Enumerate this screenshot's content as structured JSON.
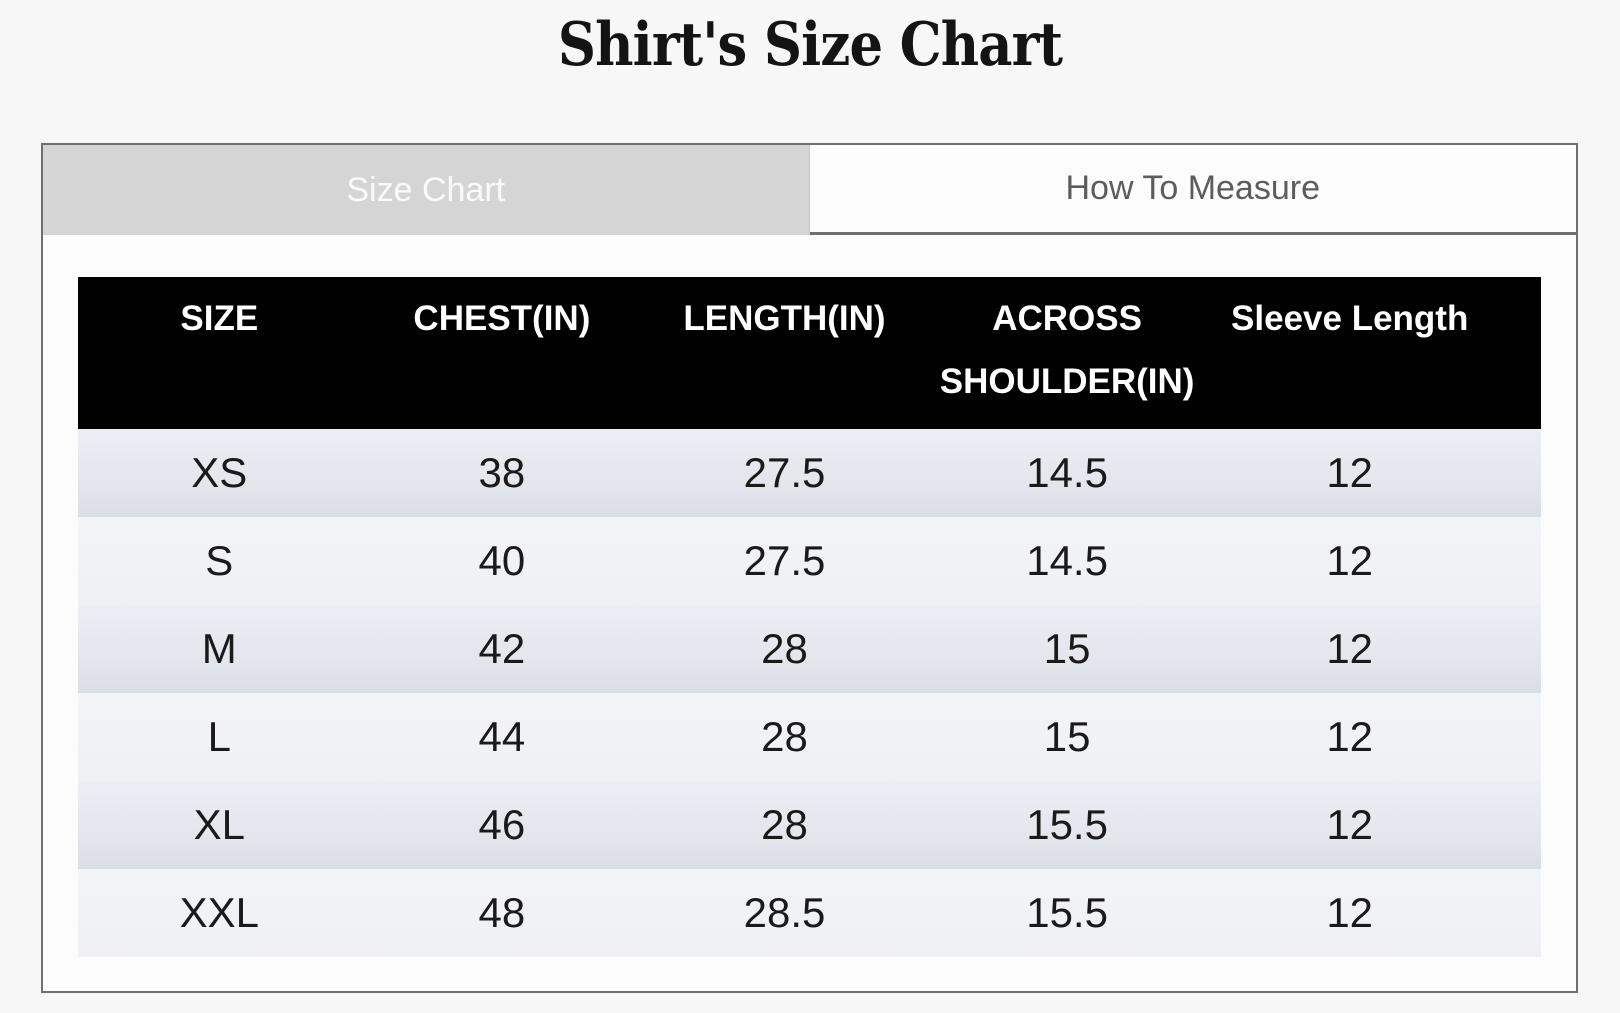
{
  "page": {
    "title": "Shirt's Size Chart"
  },
  "tabs": {
    "size_chart": {
      "label": "Size Chart",
      "active": true
    },
    "how_to_measure": {
      "label": "How To Measure",
      "active": false
    }
  },
  "size_table": {
    "columns": [
      "SIZE",
      "CHEST(IN)",
      "LENGTH(IN)",
      "ACROSS SHOULDER(IN)",
      "Sleeve Length"
    ],
    "rows": [
      [
        "XS",
        "38",
        "27.5",
        "14.5",
        "12"
      ],
      [
        "S",
        "40",
        "27.5",
        "14.5",
        "12"
      ],
      [
        "M",
        "42",
        "28",
        "15",
        "12"
      ],
      [
        "L",
        "44",
        "28",
        "15",
        "12"
      ],
      [
        "XL",
        "46",
        "28",
        "15.5",
        "12"
      ],
      [
        "XXL",
        "48",
        "28.5",
        "15.5",
        "12"
      ]
    ]
  },
  "colors": {
    "page_background": "#f7f7f7",
    "panel_background": "#fcfcfc",
    "border": "#6f6f6f",
    "tab_active_bg": "#d5d5d5",
    "tab_active_text": "#fafafa",
    "tab_inactive_text": "#5c5c5c",
    "table_header_bg": "#010101",
    "table_header_text": "#ffffff",
    "row_odd_bg": "#e2e5ec",
    "row_even_bg": "#f1f2f5",
    "body_text": "#1a1a1a"
  }
}
